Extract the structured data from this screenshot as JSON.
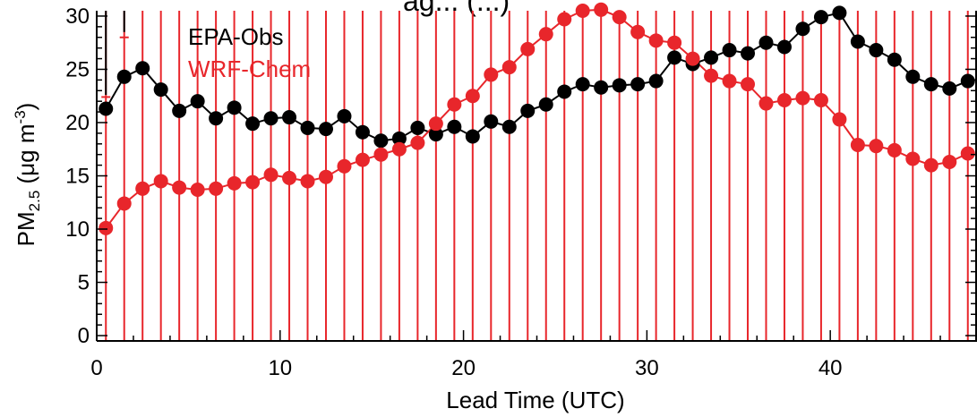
{
  "chart_data": {
    "type": "line",
    "title": "ag... (...)",
    "xlabel": "Lead Time (UTC)",
    "ylabel": {
      "main": "PM",
      "sub": "2.5",
      "unit_open": " (μg m",
      "sup": "-3",
      "unit_close": ")"
    },
    "xlim": [
      0,
      48
    ],
    "ylim": [
      -0.5,
      30.5
    ],
    "xticks": [
      0,
      10,
      20,
      30,
      40
    ],
    "yticks": [
      0,
      5,
      10,
      15,
      20,
      25,
      30
    ],
    "grid": false,
    "legend_position": "top-left",
    "colors": {
      "obs": "#000000",
      "model": "#e8262b"
    },
    "x": [
      0.5,
      1.5,
      2.5,
      3.5,
      4.5,
      5.5,
      6.5,
      7.5,
      8.5,
      9.5,
      10.5,
      11.5,
      12.5,
      13.5,
      14.5,
      15.5,
      16.5,
      17.5,
      18.5,
      19.5,
      20.5,
      21.5,
      22.5,
      23.5,
      24.5,
      25.5,
      26.5,
      27.5,
      28.5,
      29.5,
      30.5,
      31.5,
      32.5,
      33.5,
      34.5,
      35.5,
      36.5,
      37.5,
      38.5,
      39.5,
      40.5,
      41.5,
      42.5,
      43.5,
      44.5,
      45.5,
      46.5,
      47.5
    ],
    "series": [
      {
        "name": "EPA-Obs",
        "color": "#000000",
        "values": [
          21.3,
          24.3,
          25.1,
          23.1,
          21.1,
          22.0,
          20.4,
          21.4,
          19.9,
          20.4,
          20.5,
          19.5,
          19.4,
          20.6,
          19.1,
          18.3,
          18.5,
          19.5,
          18.9,
          19.6,
          18.7,
          20.1,
          19.6,
          21.1,
          21.7,
          22.9,
          23.6,
          23.3,
          23.5,
          23.6,
          23.9,
          26.1,
          25.5,
          26.1,
          26.8,
          26.5,
          27.5,
          27.1,
          28.8,
          29.9,
          30.3,
          27.6,
          26.8,
          25.9,
          24.3,
          23.6,
          23.2,
          23.9
        ]
      },
      {
        "name": "WRF-Chem",
        "color": "#e8262b",
        "values": [
          10.1,
          12.4,
          13.8,
          14.5,
          13.9,
          13.7,
          13.8,
          14.3,
          14.4,
          15.1,
          14.8,
          14.5,
          14.9,
          15.9,
          16.5,
          17.0,
          17.5,
          18.1,
          19.9,
          21.7,
          22.5,
          24.5,
          25.2,
          26.9,
          28.3,
          29.7,
          30.5,
          30.6,
          29.9,
          28.5,
          27.7,
          27.5,
          26.0,
          24.4,
          23.9,
          23.6,
          21.8,
          22.1,
          22.3,
          22.1,
          20.3,
          17.9,
          17.8,
          17.4,
          16.6,
          16.0,
          16.3,
          17.1
        ]
      }
    ],
    "error_bars": {
      "obs_upper_visible": [
        [
          0.5,
          31.0
        ],
        [
          1.5,
          31.0
        ]
      ],
      "model_upper": [
        [
          0.5,
          22.4
        ],
        [
          1.5,
          28.0
        ]
      ]
    }
  }
}
